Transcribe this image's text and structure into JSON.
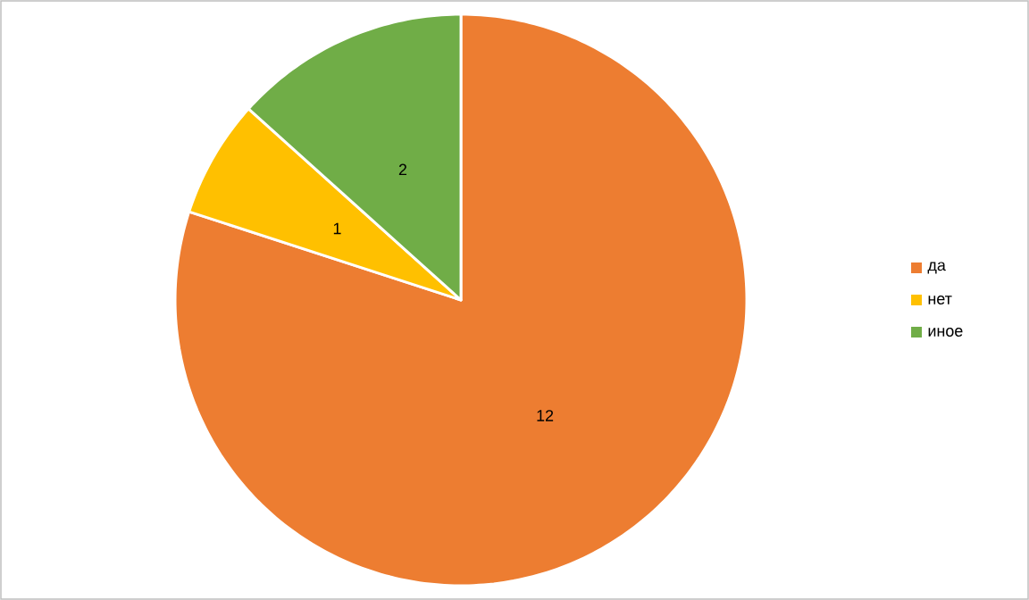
{
  "chart_data": {
    "type": "pie",
    "categories": [
      "да",
      "нет",
      "иное"
    ],
    "values": [
      12,
      1,
      2
    ],
    "colors": [
      "#ed7d31",
      "#ffc000",
      "#70ad47"
    ],
    "data_labels": true,
    "legend": "right"
  }
}
